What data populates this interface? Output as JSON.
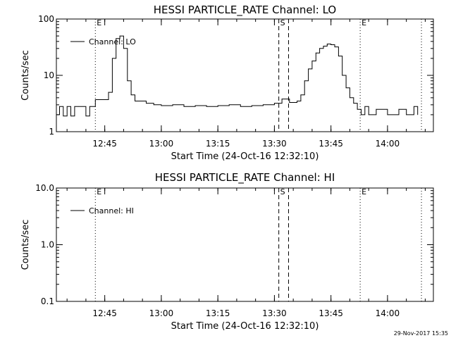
{
  "chart_data": [
    {
      "type": "line",
      "title": "HESSI PARTICLE_RATE Channel: LO",
      "xlabel": "Start Time (24-Oct-16 12:32:10)",
      "ylabel": "Counts/sec",
      "yscale": "log",
      "ylim": [
        1,
        100
      ],
      "xlim": [
        "12:32:10",
        "14:12:10"
      ],
      "y_ticks": [
        "1",
        "10",
        "100"
      ],
      "x_ticks": [
        "12:45",
        "13:00",
        "13:15",
        "13:30",
        "13:45",
        "14:00"
      ],
      "legend": {
        "label": "Channel: LO",
        "position": "top-left"
      },
      "markers": [
        {
          "time": "12:42:30",
          "style": "dotted",
          "label": "E"
        },
        {
          "time": "13:31:10",
          "style": "dashed",
          "label": "S"
        },
        {
          "time": "13:33:45",
          "style": "dashed",
          "label": ""
        },
        {
          "time": "13:52:45",
          "style": "dotted",
          "label": "E"
        },
        {
          "time": "14:09:00",
          "style": "dotted",
          "label": ""
        }
      ],
      "series": [
        {
          "name": "Channel: LO",
          "x": [
            "12:32:10",
            "12:33:00",
            "12:34:00",
            "12:35:00",
            "12:36:00",
            "12:37:00",
            "12:38:00",
            "12:39:00",
            "12:40:00",
            "12:41:00",
            "12:42:30",
            "12:45:00",
            "12:46:00",
            "12:47:00",
            "12:48:00",
            "12:49:00",
            "12:50:00",
            "12:51:00",
            "12:52:00",
            "12:53:00",
            "12:54:00",
            "12:56:00",
            "12:58:00",
            "13:00:00",
            "13:03:00",
            "13:06:00",
            "13:09:00",
            "13:12:00",
            "13:15:00",
            "13:18:00",
            "13:21:00",
            "13:24:00",
            "13:27:00",
            "13:30:00",
            "13:32:00",
            "13:34:00",
            "13:36:00",
            "13:37:00",
            "13:38:00",
            "13:39:00",
            "13:40:00",
            "13:41:00",
            "13:42:00",
            "13:43:00",
            "13:44:00",
            "13:45:00",
            "13:46:00",
            "13:47:00",
            "13:48:00",
            "13:49:00",
            "13:50:00",
            "13:51:00",
            "13:52:00",
            "13:53:00",
            "13:54:00",
            "13:55:00",
            "13:57:00",
            "14:00:00",
            "14:03:00",
            "14:05:00",
            "14:07:00",
            "14:08:00"
          ],
          "y": [
            2.0,
            2.8,
            1.9,
            2.8,
            1.9,
            2.8,
            2.8,
            2.8,
            1.9,
            2.8,
            3.7,
            3.7,
            5.0,
            20,
            45,
            50,
            30,
            8,
            4.5,
            3.5,
            3.5,
            3.2,
            3.0,
            2.9,
            3.0,
            2.8,
            2.9,
            2.8,
            2.9,
            3.0,
            2.8,
            2.9,
            3.0,
            3.2,
            3.8,
            3.3,
            3.5,
            4.5,
            8,
            13,
            18,
            25,
            30,
            33,
            36,
            35,
            32,
            22,
            10,
            6,
            4.0,
            3.2,
            2.5,
            2.0,
            2.8,
            2.0,
            2.5,
            2.0,
            2.5,
            2.0,
            2.8,
            2.0
          ]
        }
      ]
    },
    {
      "type": "line",
      "title": "HESSI PARTICLE_RATE Channel: HI",
      "xlabel": "Start Time (24-Oct-16 12:32:10)",
      "ylabel": "Counts/sec",
      "yscale": "log",
      "ylim": [
        0.1,
        10
      ],
      "xlim": [
        "12:32:10",
        "14:12:10"
      ],
      "y_ticks": [
        "0.1",
        "1.0",
        "10.0"
      ],
      "x_ticks": [
        "12:45",
        "13:00",
        "13:15",
        "13:30",
        "13:45",
        "14:00"
      ],
      "legend": {
        "label": "Channel: HI",
        "position": "top-left"
      },
      "markers": [
        {
          "time": "12:42:30",
          "style": "dotted",
          "label": "E"
        },
        {
          "time": "13:31:10",
          "style": "dashed",
          "label": "S"
        },
        {
          "time": "13:33:45",
          "style": "dashed",
          "label": ""
        },
        {
          "time": "13:52:45",
          "style": "dotted",
          "label": "E"
        },
        {
          "time": "14:09:00",
          "style": "dotted",
          "label": ""
        }
      ],
      "series": [
        {
          "name": "Channel: HI",
          "x": [],
          "y": []
        }
      ]
    }
  ],
  "footer": {
    "timestamp": "29-Nov-2017 15:35"
  }
}
